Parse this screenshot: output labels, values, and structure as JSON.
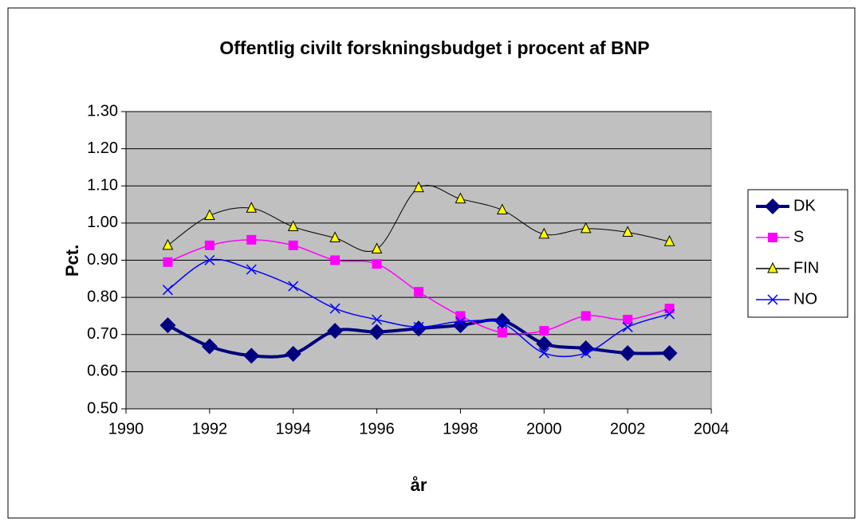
{
  "chart_data": {
    "type": "line",
    "title": "Offentlig civilt forskningsbudget i procent af BNP",
    "x_label": "år",
    "y_label": "Pct.",
    "x": [
      1991,
      1992,
      1993,
      1994,
      1995,
      1996,
      1997,
      1998,
      1999,
      2000,
      2001,
      2002,
      2003
    ],
    "series": [
      {
        "name": "DK",
        "color": "#000080",
        "marker": "diamond",
        "values": [
          0.725,
          0.668,
          0.643,
          0.648,
          0.71,
          0.707,
          0.716,
          0.725,
          0.737,
          0.675,
          0.663,
          0.65,
          0.65
        ]
      },
      {
        "name": "S",
        "color": "#ff00ff",
        "marker": "square",
        "values": [
          0.895,
          0.94,
          0.955,
          0.94,
          0.9,
          0.89,
          0.815,
          0.75,
          0.705,
          0.71,
          0.75,
          0.74,
          0.77
        ]
      },
      {
        "name": "FIN",
        "color": "#000000",
        "marker": "triangle",
        "values": [
          0.94,
          1.02,
          1.04,
          0.99,
          0.96,
          0.93,
          1.095,
          1.065,
          1.035,
          0.97,
          0.985,
          0.975,
          0.95
        ]
      },
      {
        "name": "NO",
        "color": "#0000ff",
        "marker": "x",
        "values": [
          0.82,
          0.9,
          0.875,
          0.83,
          0.77,
          0.74,
          0.72,
          0.735,
          0.73,
          0.65,
          0.65,
          0.72,
          0.755
        ]
      }
    ],
    "xlim": [
      1990,
      2004
    ],
    "xticks": [
      1990,
      1992,
      1994,
      1996,
      1998,
      2000,
      2002,
      2004
    ],
    "ylim": [
      0.5,
      1.3
    ],
    "yticks": [
      {
        "value": 0.5,
        "label": "0.50"
      },
      {
        "value": 0.6,
        "label": "0.60"
      },
      {
        "value": 0.7,
        "label": "0.70"
      },
      {
        "value": 0.8,
        "label": "0.80"
      },
      {
        "value": 0.9,
        "label": "0.90"
      },
      {
        "value": 1.0,
        "label": "1.00"
      },
      {
        "value": 1.1,
        "label": "1.10"
      },
      {
        "value": 1.2,
        "label": "1.20"
      },
      {
        "value": 1.3,
        "label": "1.30"
      }
    ],
    "grid": true,
    "smooth": true,
    "legend": "right",
    "plot_background": "#c0c0c0"
  }
}
